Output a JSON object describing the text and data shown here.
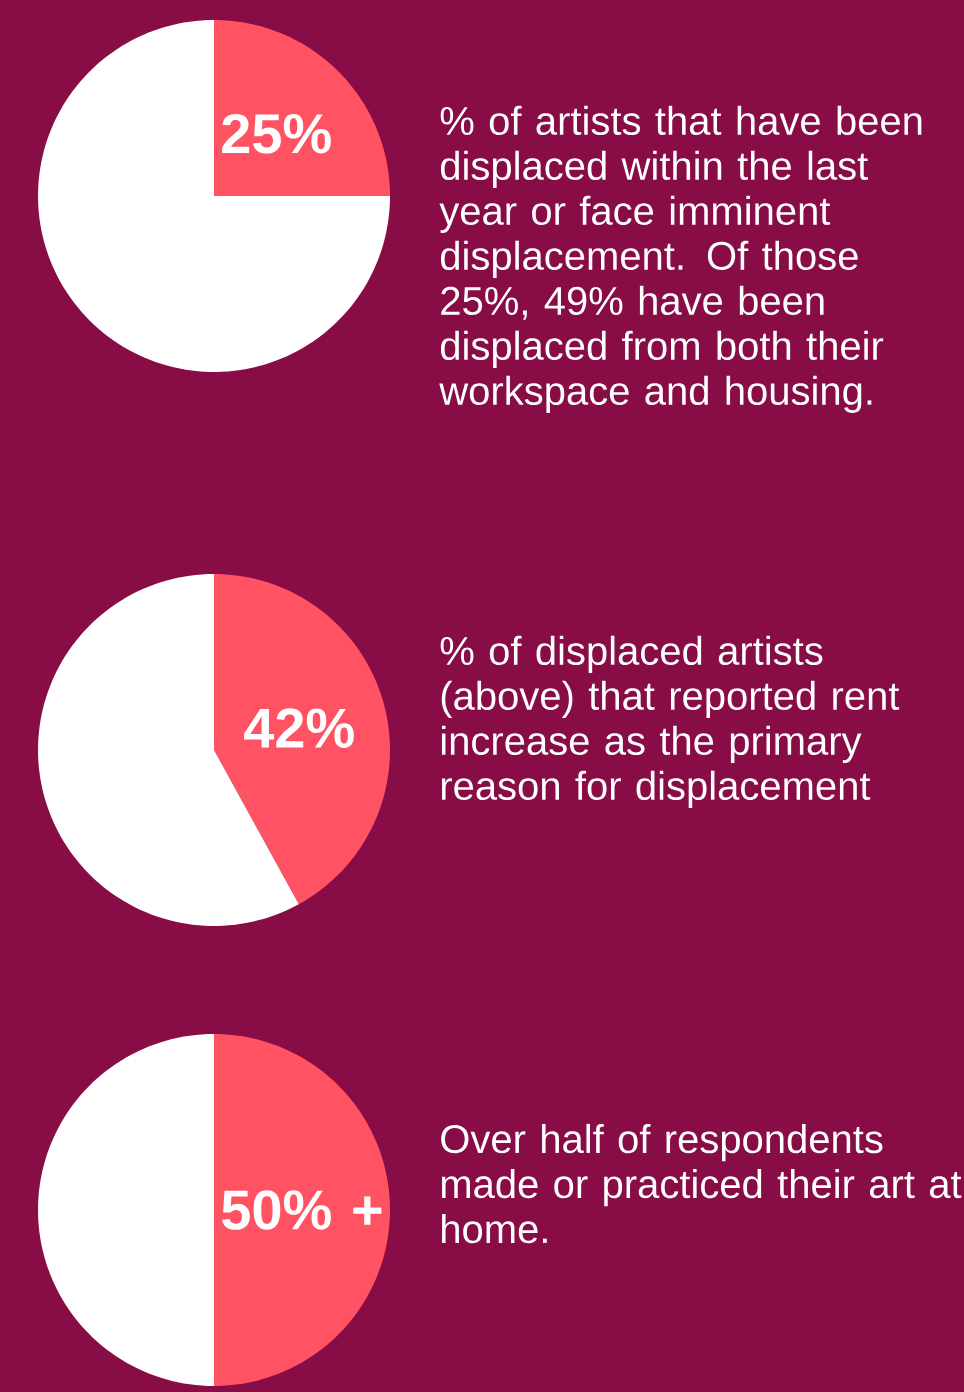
{
  "chart_data": [
    {
      "type": "pie",
      "categories": [
        null,
        null
      ],
      "values": [
        25,
        75
      ],
      "colors": [
        "#ff5263",
        "#ffffff"
      ],
      "value_labels": [
        "25%",
        null
      ],
      "annotations": [
        "% of artists that have been displaced within the last year or face imminent displacement. Of those 25%, 49% have been displaced from both their workspace and housing."
      ]
    },
    {
      "type": "pie",
      "categories": [
        null,
        null
      ],
      "values": [
        42,
        58
      ],
      "colors": [
        "#ff5263",
        "#ffffff"
      ],
      "value_labels": [
        "42%",
        null
      ],
      "annotations": [
        "% of displaced artists (above) that reported rent increase as the primary reason for displacement"
      ]
    },
    {
      "type": "pie",
      "categories": [
        null,
        null
      ],
      "values": [
        50,
        50
      ],
      "colors": [
        "#ff5263",
        "#ffffff"
      ],
      "value_labels": [
        "50% +",
        null
      ],
      "annotations": [
        "Over half of respondents made or practiced their art at home."
      ]
    }
  ]
}
